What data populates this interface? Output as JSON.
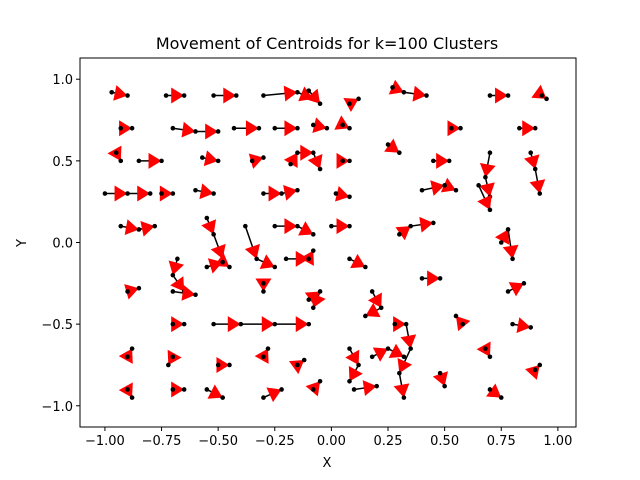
{
  "chart_data": {
    "type": "trajectory",
    "title": "Movement of Centroids for k=100 Clusters",
    "x_label": "X",
    "y_label": "Y",
    "xlim": [
      -1.11,
      1.08
    ],
    "ylim": [
      -1.13,
      1.13
    ],
    "xticks": [
      {
        "value": -1,
        "label": "−1.00"
      },
      {
        "value": -0.75,
        "label": "−0.75"
      },
      {
        "value": -0.5,
        "label": "−0.50"
      },
      {
        "value": -0.25,
        "label": "−0.25"
      },
      {
        "value": 0,
        "label": "0.00"
      },
      {
        "value": 0.25,
        "label": "0.25"
      },
      {
        "value": 0.5,
        "label": "0.50"
      },
      {
        "value": 0.75,
        "label": "0.75"
      },
      {
        "value": 1,
        "label": "1.00"
      }
    ],
    "yticks": [
      {
        "value": -1,
        "label": "−1.0"
      },
      {
        "value": -0.5,
        "label": "−0.5"
      },
      {
        "value": 0,
        "label": "0.0"
      },
      {
        "value": 0.5,
        "label": "0.5"
      },
      {
        "value": 1,
        "label": "1.0"
      }
    ],
    "line_color": "#000000",
    "arrow_color": "#ff0000",
    "trajectories": [
      {
        "x": [
          -0.97,
          -0.9
        ],
        "y": [
          0.92,
          0.9
        ]
      },
      {
        "x": [
          -0.73,
          -0.65
        ],
        "y": [
          0.9,
          0.9
        ]
      },
      {
        "x": [
          -0.52,
          -0.42
        ],
        "y": [
          0.9,
          0.9
        ]
      },
      {
        "x": [
          -0.3,
          -0.15,
          -0.08
        ],
        "y": [
          0.9,
          0.92,
          0.88
        ]
      },
      {
        "x": [
          -0.1,
          -0.05
        ],
        "y": [
          0.93,
          0.85
        ]
      },
      {
        "x": [
          0.08,
          0.12
        ],
        "y": [
          0.85,
          0.88
        ]
      },
      {
        "x": [
          0.27,
          0.32,
          0.42
        ],
        "y": [
          0.95,
          0.92,
          0.9
        ]
      },
      {
        "x": [
          0.7,
          0.78
        ],
        "y": [
          0.9,
          0.9
        ]
      },
      {
        "x": [
          0.93,
          0.95
        ],
        "y": [
          0.9,
          0.88
        ]
      },
      {
        "x": [
          -0.93,
          -0.88
        ],
        "y": [
          0.7,
          0.7
        ]
      },
      {
        "x": [
          -0.7,
          -0.6,
          -0.5
        ],
        "y": [
          0.7,
          0.68,
          0.68
        ]
      },
      {
        "x": [
          -0.43,
          -0.32
        ],
        "y": [
          0.7,
          0.7
        ]
      },
      {
        "x": [
          -0.25,
          -0.15
        ],
        "y": [
          0.7,
          0.7
        ]
      },
      {
        "x": [
          -0.08,
          -0.02
        ],
        "y": [
          0.72,
          0.7
        ]
      },
      {
        "x": [
          0.05,
          0.08
        ],
        "y": [
          0.72,
          0.7
        ]
      },
      {
        "x": [
          0.25,
          0.3
        ],
        "y": [
          0.6,
          0.55
        ]
      },
      {
        "x": [
          0.53,
          0.57
        ],
        "y": [
          0.7,
          0.7
        ]
      },
      {
        "x": [
          0.83,
          0.9
        ],
        "y": [
          0.7,
          0.7
        ]
      },
      {
        "x": [
          -0.95,
          -0.93
        ],
        "y": [
          0.55,
          0.5
        ]
      },
      {
        "x": [
          -0.85,
          -0.75
        ],
        "y": [
          0.5,
          0.5
        ]
      },
      {
        "x": [
          -0.57,
          -0.5
        ],
        "y": [
          0.52,
          0.5
        ]
      },
      {
        "x": [
          -0.35,
          -0.3
        ],
        "y": [
          0.5,
          0.52
        ]
      },
      {
        "x": [
          -0.18,
          -0.15,
          -0.08,
          -0.05
        ],
        "y": [
          0.48,
          0.55,
          0.55,
          0.45
        ]
      },
      {
        "x": [
          0.05,
          0.08
        ],
        "y": [
          0.5,
          0.5
        ]
      },
      {
        "x": [
          0.45,
          0.52
        ],
        "y": [
          0.5,
          0.5
        ]
      },
      {
        "x": [
          0.7,
          0.68,
          0.7
        ],
        "y": [
          0.55,
          0.4,
          0.28
        ]
      },
      {
        "x": [
          0.88,
          0.9,
          0.92
        ],
        "y": [
          0.55,
          0.45,
          0.3
        ]
      },
      {
        "x": [
          -1.0,
          -0.9,
          -0.8
        ],
        "y": [
          0.3,
          0.3,
          0.3
        ]
      },
      {
        "x": [
          -0.75,
          -0.7
        ],
        "y": [
          0.3,
          0.3
        ]
      },
      {
        "x": [
          -0.6,
          -0.52
        ],
        "y": [
          0.32,
          0.3
        ]
      },
      {
        "x": [
          -0.3,
          -0.22,
          -0.15
        ],
        "y": [
          0.3,
          0.3,
          0.32
        ]
      },
      {
        "x": [
          0.02,
          0.08
        ],
        "y": [
          0.3,
          0.28
        ]
      },
      {
        "x": [
          0.4,
          0.5,
          0.55
        ],
        "y": [
          0.32,
          0.35,
          0.32
        ]
      },
      {
        "x": [
          0.65,
          0.7
        ],
        "y": [
          0.35,
          0.2
        ]
      },
      {
        "x": [
          -0.93,
          -0.85,
          -0.78
        ],
        "y": [
          0.1,
          0.08,
          0.1
        ]
      },
      {
        "x": [
          -0.55,
          -0.52,
          -0.48
        ],
        "y": [
          0.15,
          0.05,
          -0.1
        ]
      },
      {
        "x": [
          -0.38,
          -0.33,
          -0.25
        ],
        "y": [
          0.1,
          -0.1,
          -0.15
        ]
      },
      {
        "x": [
          -0.25,
          -0.15,
          -0.08
        ],
        "y": [
          0.1,
          0.1,
          0.05
        ]
      },
      {
        "x": [
          0.0,
          0.08
        ],
        "y": [
          0.1,
          0.1
        ]
      },
      {
        "x": [
          0.3,
          0.35,
          0.45
        ],
        "y": [
          0.05,
          0.1,
          0.12
        ]
      },
      {
        "x": [
          0.75,
          0.78,
          0.8
        ],
        "y": [
          0.0,
          0.08,
          -0.1
        ]
      },
      {
        "x": [
          -0.68,
          -0.7,
          -0.65
        ],
        "y": [
          -0.1,
          -0.2,
          -0.3
        ]
      },
      {
        "x": [
          -0.55,
          -0.48,
          -0.45
        ],
        "y": [
          -0.15,
          -0.12,
          -0.15
        ]
      },
      {
        "x": [
          -0.2,
          -0.1,
          -0.08
        ],
        "y": [
          -0.1,
          -0.1,
          -0.05
        ]
      },
      {
        "x": [
          0.08,
          0.15
        ],
        "y": [
          -0.1,
          -0.15
        ]
      },
      {
        "x": [
          0.4,
          0.48
        ],
        "y": [
          -0.22,
          -0.22
        ]
      },
      {
        "x": [
          -0.3,
          -0.3
        ],
        "y": [
          -0.25,
          -0.3
        ]
      },
      {
        "x": [
          -0.1,
          -0.05,
          -0.08
        ],
        "y": [
          -0.35,
          -0.3,
          -0.4
        ]
      },
      {
        "x": [
          0.18,
          0.22,
          0.15
        ],
        "y": [
          -0.3,
          -0.4,
          -0.45
        ]
      },
      {
        "x": [
          0.78,
          0.85
        ],
        "y": [
          -0.3,
          -0.25
        ]
      },
      {
        "x": [
          -0.9,
          -0.85
        ],
        "y": [
          -0.3,
          -0.28
        ]
      },
      {
        "x": [
          -0.7,
          -0.6
        ],
        "y": [
          -0.3,
          -0.32
        ]
      },
      {
        "x": [
          -0.52,
          -0.4,
          -0.25,
          -0.1
        ],
        "y": [
          -0.5,
          -0.5,
          -0.5,
          -0.5
        ]
      },
      {
        "x": [
          -0.7,
          -0.65
        ],
        "y": [
          -0.5,
          -0.5
        ]
      },
      {
        "x": [
          0.28,
          0.33,
          0.35,
          0.3,
          0.32
        ],
        "y": [
          -0.5,
          -0.5,
          -0.65,
          -0.8,
          -0.95
        ]
      },
      {
        "x": [
          0.58,
          0.55
        ],
        "y": [
          -0.5,
          -0.45
        ]
      },
      {
        "x": [
          0.8,
          0.88
        ],
        "y": [
          -0.5,
          -0.52
        ]
      },
      {
        "x": [
          -0.9,
          -0.88
        ],
        "y": [
          -0.7,
          -0.65
        ]
      },
      {
        "x": [
          -0.7,
          -0.72
        ],
        "y": [
          -0.7,
          -0.75
        ]
      },
      {
        "x": [
          -0.5,
          -0.45
        ],
        "y": [
          -0.75,
          -0.75
        ]
      },
      {
        "x": [
          -0.3,
          -0.28
        ],
        "y": [
          -0.7,
          -0.65
        ]
      },
      {
        "x": [
          -0.15,
          -0.12
        ],
        "y": [
          -0.75,
          -0.72
        ]
      },
      {
        "x": [
          0.08,
          0.12,
          0.08
        ],
        "y": [
          -0.65,
          -0.75,
          -0.85
        ]
      },
      {
        "x": [
          0.18,
          0.25,
          0.32
        ],
        "y": [
          -0.7,
          -0.65,
          -0.7
        ]
      },
      {
        "x": [
          0.48,
          0.5
        ],
        "y": [
          -0.8,
          -0.88
        ]
      },
      {
        "x": [
          0.68,
          0.7
        ],
        "y": [
          -0.65,
          -0.7
        ]
      },
      {
        "x": [
          0.9,
          0.92
        ],
        "y": [
          -0.78,
          -0.75
        ]
      },
      {
        "x": [
          -0.9,
          -0.88
        ],
        "y": [
          -0.9,
          -0.95
        ]
      },
      {
        "x": [
          -0.7,
          -0.65
        ],
        "y": [
          -0.9,
          -0.9
        ]
      },
      {
        "x": [
          -0.55,
          -0.48
        ],
        "y": [
          -0.9,
          -0.95
        ]
      },
      {
        "x": [
          -0.3,
          -0.22
        ],
        "y": [
          -0.95,
          -0.9
        ]
      },
      {
        "x": [
          -0.08,
          -0.05
        ],
        "y": [
          -0.9,
          -0.85
        ]
      },
      {
        "x": [
          0.1,
          0.2
        ],
        "y": [
          -0.9,
          -0.88
        ]
      },
      {
        "x": [
          0.7,
          0.75
        ],
        "y": [
          -0.9,
          -0.95
        ]
      }
    ]
  }
}
